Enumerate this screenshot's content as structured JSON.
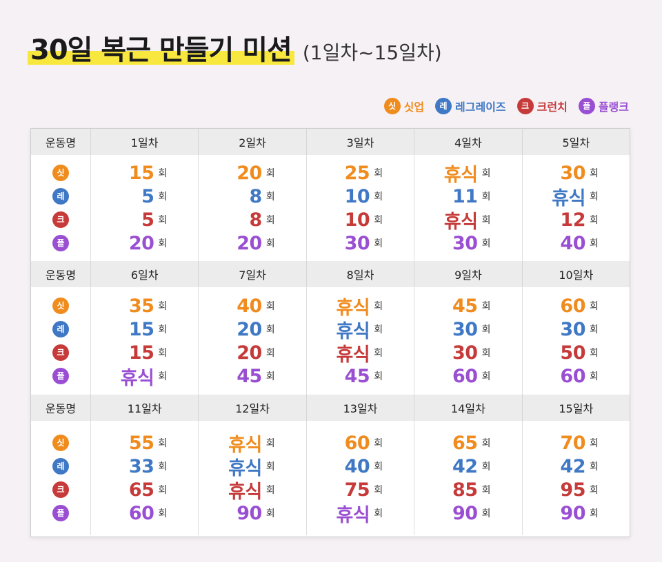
{
  "title": "30일 복근 만들기 미션",
  "subtitle": "(1일차~15일차)",
  "colors": {
    "sit": "#f08c1e",
    "leg": "#3f78c4",
    "crunch": "#c63a3a",
    "plank": "#9a4fd3"
  },
  "legend": [
    {
      "badge": "싯",
      "label": "싯업"
    },
    {
      "badge": "레",
      "label": "레그레이즈"
    },
    {
      "badge": "크",
      "label": "크런치"
    },
    {
      "badge": "플",
      "label": "플랭크"
    }
  ],
  "header_label": "운동명",
  "unit": "회",
  "blocks": [
    {
      "days": [
        {
          "label": "1일차",
          "values": [
            "15",
            "5",
            "5",
            "20"
          ]
        },
        {
          "label": "2일차",
          "values": [
            "20",
            "8",
            "8",
            "20"
          ]
        },
        {
          "label": "3일차",
          "values": [
            "25",
            "10",
            "10",
            "30"
          ]
        },
        {
          "label": "4일차",
          "values": [
            "휴식",
            "11",
            "휴식",
            "30"
          ]
        },
        {
          "label": "5일차",
          "values": [
            "30",
            "휴식",
            "12",
            "40"
          ]
        }
      ]
    },
    {
      "days": [
        {
          "label": "6일차",
          "values": [
            "35",
            "15",
            "15",
            "휴식"
          ]
        },
        {
          "label": "7일차",
          "values": [
            "40",
            "20",
            "20",
            "45"
          ]
        },
        {
          "label": "8일차",
          "values": [
            "휴식",
            "휴식",
            "휴식",
            "45"
          ]
        },
        {
          "label": "9일차",
          "values": [
            "45",
            "30",
            "30",
            "60"
          ]
        },
        {
          "label": "10일차",
          "values": [
            "60",
            "30",
            "50",
            "60"
          ]
        }
      ]
    },
    {
      "days": [
        {
          "label": "11일차",
          "values": [
            "55",
            "33",
            "65",
            "60"
          ]
        },
        {
          "label": "12일차",
          "values": [
            "휴식",
            "휴식",
            "휴식",
            "90"
          ]
        },
        {
          "label": "13일차",
          "values": [
            "60",
            "40",
            "75",
            "휴식"
          ]
        },
        {
          "label": "14일차",
          "values": [
            "65",
            "42",
            "85",
            "90"
          ]
        },
        {
          "label": "15일차",
          "values": [
            "70",
            "42",
            "95",
            "90"
          ]
        }
      ]
    }
  ]
}
